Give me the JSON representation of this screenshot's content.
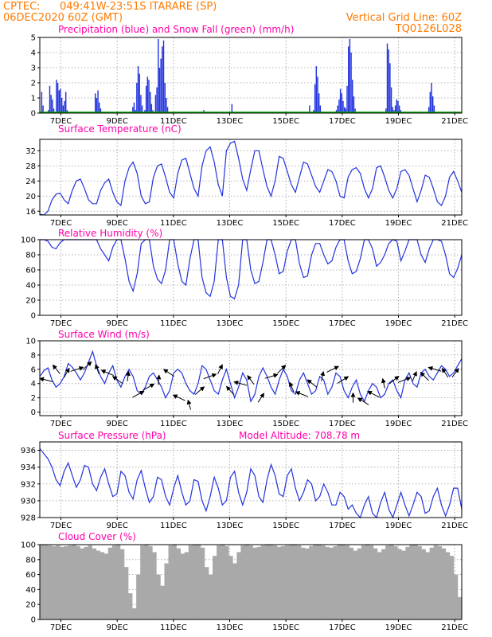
{
  "header": {
    "source": "CPTEC:",
    "location": "049:41W-23:51S  ITARARE (SP)",
    "run": "06DEC2020 60Z (GMT)",
    "grid_note": "Vertical Grid Line: 60Z",
    "code": "TQ0126L028"
  },
  "colors": {
    "header": "#ff7a00",
    "titles": "#ff00aa",
    "line": "#2233dd",
    "precip": "#2233dd",
    "snow": "#00aa00",
    "cloud": "#a9a9a9",
    "grid": "#9a9a9a"
  },
  "chart_data": [
    {
      "id": "precip",
      "type": "bar",
      "title": "Precipitation (blue) and Snow Fall (green) (mm/h)",
      "x_ticks": [
        "7DEC",
        "9DEC",
        "11DEC",
        "13DEC",
        "15DEC",
        "17DEC",
        "19DEC",
        "21DEC"
      ],
      "x_start": "06DEC2020 06Z",
      "x_step_hours": 3,
      "ylim": [
        0,
        5
      ],
      "yticks": [
        0,
        1,
        2,
        3,
        4,
        5
      ],
      "grid": true,
      "series": [
        {
          "values": [
            0,
            1.4,
            0.5,
            0,
            0,
            0,
            0.2,
            1.8,
            1.2,
            0.9,
            0.3,
            0,
            2.2,
            2.0,
            1.5,
            1.6,
            1.0,
            0.5,
            0.8,
            1.4,
            0.2,
            0,
            0,
            0,
            0,
            0,
            0,
            0,
            0,
            0,
            0,
            0,
            0,
            0,
            0,
            0,
            0,
            0,
            0,
            0,
            0,
            1.3,
            1.0,
            1.5,
            0.7,
            0.3,
            0,
            0,
            0,
            0,
            0,
            0,
            0,
            0,
            0,
            0,
            0,
            0,
            0,
            0,
            0,
            0,
            0,
            0,
            0,
            0,
            0,
            0,
            0,
            0.4,
            0.7,
            0.2,
            2.0,
            3.1,
            2.6,
            1.2,
            0.5,
            0,
            0.2,
            1.8,
            2.4,
            2.2,
            1.4,
            0.6,
            0.2,
            0,
            1.2,
            1.7,
            4.9,
            3.0,
            3.6,
            4.4,
            4.8,
            2.0,
            1.0,
            0.4,
            0,
            0,
            0,
            0,
            0,
            0,
            0,
            0,
            0,
            0,
            0,
            0,
            0,
            0,
            0,
            0,
            0,
            0,
            0,
            0,
            0,
            0,
            0,
            0,
            0,
            0,
            0.2,
            0,
            0,
            0,
            0,
            0,
            0,
            0,
            0,
            0,
            0,
            0,
            0,
            0,
            0,
            0,
            0,
            0,
            0,
            0,
            0,
            0.6,
            0,
            0,
            0,
            0,
            0,
            0,
            0,
            0,
            0,
            0,
            0,
            0,
            0,
            0,
            0,
            0,
            0,
            0,
            0,
            0,
            0,
            0,
            0,
            0,
            0,
            0,
            0,
            0,
            0,
            0,
            0,
            0,
            0,
            0,
            0,
            0,
            0,
            0,
            0,
            0,
            0,
            0,
            0,
            0,
            0,
            0,
            0,
            0,
            0,
            0,
            0,
            0,
            0,
            0,
            0,
            0,
            0,
            0.5,
            0,
            0,
            0.2,
            1.9,
            3.1,
            2.4,
            1.3,
            0.5,
            0,
            0,
            0,
            0,
            0,
            0,
            0,
            0,
            0,
            0,
            0,
            0.2,
            0.5,
            0.9,
            1.6,
            1.3,
            0.8,
            0.4,
            0.3,
            1.8,
            4.4,
            4.9,
            4.0,
            2.2,
            1.1,
            0.3,
            0,
            0,
            0,
            0,
            0,
            0,
            0,
            0,
            0,
            0,
            0,
            0,
            0,
            0,
            0,
            0,
            0,
            0,
            0,
            0,
            0,
            0,
            0.3,
            4.6,
            4.2,
            3.3,
            1.7,
            0.4,
            0.2,
            0.5,
            0.9,
            0.8,
            0.5,
            0.2,
            0,
            0,
            0,
            0,
            0,
            0,
            0,
            0,
            0,
            0,
            0,
            0,
            0,
            0,
            0,
            0,
            0,
            0,
            0,
            0,
            0.4,
            1.4,
            2.0,
            1.1,
            0.5,
            0,
            0,
            0,
            0,
            0,
            0,
            0,
            0,
            0,
            0,
            0,
            0,
            0,
            0,
            0,
            0,
            0,
            0,
            0,
            0
          ]
        }
      ]
    },
    {
      "id": "temp",
      "type": "line",
      "title": "Surface Temperature (nC)",
      "ylim": [
        15,
        35
      ],
      "yticks": [
        16,
        20,
        24,
        28,
        32
      ],
      "grid": true,
      "x_ticks": [
        "7DEC",
        "9DEC",
        "11DEC",
        "13DEC",
        "15DEC",
        "17DEC",
        "19DEC",
        "21DEC"
      ],
      "series": [
        {
          "values": [
            15.2,
            15.0,
            16.0,
            19.0,
            20.5,
            20.8,
            19.0,
            18.0,
            21.5,
            24.0,
            24.5,
            22.0,
            19.0,
            18.0,
            18.0,
            21.5,
            23.5,
            24.5,
            21.0,
            18.5,
            17.5,
            24.0,
            27.5,
            29.0,
            26.0,
            20.0,
            18.0,
            18.5,
            25.0,
            28.0,
            28.5,
            25.0,
            21.0,
            19.5,
            26.0,
            29.5,
            30.0,
            26.0,
            22.0,
            20.0,
            28.0,
            32.0,
            33.0,
            29.0,
            23.0,
            20.0,
            32.0,
            34.0,
            34.5,
            30.0,
            24.5,
            21.5,
            27.0,
            32.0,
            32.0,
            27.0,
            22.5,
            20.0,
            24.0,
            30.5,
            30.0,
            26.5,
            23.0,
            21.0,
            25.0,
            29.0,
            28.5,
            25.5,
            22.5,
            21.0,
            24.0,
            27.0,
            26.5,
            24.0,
            20.0,
            19.5,
            25.0,
            27.0,
            27.5,
            26.0,
            22.0,
            19.5,
            22.0,
            27.5,
            28.0,
            25.0,
            21.5,
            19.5,
            22.0,
            26.5,
            27.0,
            25.5,
            22.0,
            18.5,
            21.5,
            25.5,
            25.0,
            22.0,
            18.5,
            17.5,
            20.0,
            25.0,
            26.5,
            24.0,
            21.0
          ]
        }
      ]
    },
    {
      "id": "rh",
      "type": "line",
      "title": "Relative Humidity (%)",
      "ylim": [
        0,
        100
      ],
      "yticks": [
        0,
        20,
        40,
        60,
        80,
        100
      ],
      "grid": true,
      "x_ticks": [
        "7DEC",
        "9DEC",
        "11DEC",
        "13DEC",
        "15DEC",
        "17DEC",
        "19DEC",
        "21DEC"
      ],
      "series": [
        {
          "values": [
            100,
            100,
            98,
            90,
            88,
            96,
            100,
            100,
            100,
            100,
            100,
            100,
            100,
            100,
            100,
            88,
            80,
            72,
            90,
            100,
            100,
            75,
            45,
            32,
            55,
            95,
            100,
            100,
            65,
            48,
            42,
            60,
            100,
            100,
            68,
            45,
            40,
            75,
            100,
            100,
            50,
            30,
            25,
            45,
            100,
            100,
            50,
            25,
            22,
            40,
            100,
            100,
            60,
            42,
            45,
            70,
            100,
            100,
            80,
            55,
            58,
            85,
            100,
            100,
            68,
            50,
            52,
            80,
            95,
            95,
            80,
            68,
            72,
            90,
            100,
            100,
            72,
            55,
            58,
            75,
            100,
            100,
            88,
            65,
            70,
            80,
            95,
            100,
            98,
            72,
            85,
            100,
            100,
            100,
            80,
            70,
            88,
            100,
            100,
            98,
            80,
            55,
            50,
            62,
            80
          ]
        }
      ]
    },
    {
      "id": "wind",
      "type": "line",
      "title": "Surface Wind (m/s)",
      "ylim": [
        -0.5,
        10
      ],
      "yticks": [
        0,
        2,
        4,
        6,
        8,
        10
      ],
      "grid": true,
      "x_ticks": [
        "7DEC",
        "9DEC",
        "11DEC",
        "13DEC",
        "15DEC",
        "17DEC",
        "19DEC",
        "21DEC"
      ],
      "series": [
        {
          "values": [
            5.0,
            5.8,
            6.2,
            4.5,
            3.5,
            4.0,
            5.0,
            6.8,
            6.3,
            5.5,
            4.5,
            5.5,
            7.0,
            8.5,
            6.5,
            5.0,
            4.0,
            5.5,
            6.5,
            4.5,
            3.5,
            5.0,
            6.0,
            5.0,
            3.0,
            2.5,
            3.5,
            5.0,
            5.5,
            4.5,
            3.5,
            2.0,
            3.0,
            5.5,
            6.0,
            5.5,
            4.0,
            3.0,
            2.5,
            4.0,
            6.5,
            6.0,
            4.5,
            3.0,
            2.5,
            4.5,
            6.0,
            4.0,
            2.0,
            3.5,
            5.5,
            4.5,
            1.5,
            2.5,
            5.0,
            6.2,
            5.0,
            3.5,
            2.5,
            4.5,
            6.0,
            5.0,
            3.0,
            2.5,
            4.5,
            5.5,
            4.0,
            2.5,
            3.0,
            5.0,
            4.5,
            2.5,
            3.5,
            5.5,
            5.0,
            3.0,
            2.0,
            3.5,
            4.5,
            2.5,
            1.5,
            3.0,
            4.0,
            3.5,
            2.0,
            2.5,
            4.0,
            4.5,
            3.0,
            2.0,
            4.5,
            5.5,
            4.0,
            3.5,
            5.5,
            6.0,
            5.0,
            4.5,
            5.5,
            6.5,
            6.0,
            5.0,
            5.5,
            6.5,
            7.5
          ]
        },
        {
          "name": "vectors",
          "values": [
            4.5,
            6.0,
            5.5,
            6.0,
            6.5,
            6.0,
            5.5,
            4.5,
            5.0,
            2.5,
            3.5,
            4.5,
            5.5,
            2.0,
            1.0,
            3.0,
            5.0,
            6.0,
            3.0,
            4.0,
            4.5,
            2.0,
            5.0,
            6.0,
            3.5,
            2.5,
            4.0,
            5.0,
            6.0,
            4.5,
            2.0,
            1.5,
            2.5,
            4.0,
            4.5,
            4.5,
            5.0,
            5.0,
            6.0,
            5.5,
            5.5
          ]
        }
      ]
    },
    {
      "id": "pressure",
      "type": "line",
      "title": "Surface Pressure (hPa)",
      "subtitle": "Model Altitude:  708.78 m",
      "ylim": [
        928,
        937
      ],
      "yticks": [
        928,
        930,
        932,
        934,
        936
      ],
      "grid": true,
      "x_ticks": [
        "7DEC",
        "9DEC",
        "11DEC",
        "13DEC",
        "15DEC",
        "17DEC",
        "19DEC",
        "21DEC"
      ],
      "series": [
        {
          "values": [
            936.2,
            935.6,
            935.0,
            934.0,
            932.5,
            931.8,
            933.5,
            934.5,
            933.0,
            931.6,
            932.5,
            934.2,
            934.0,
            932.0,
            931.2,
            932.8,
            933.8,
            932.0,
            930.5,
            930.8,
            933.5,
            933.0,
            931.0,
            930.2,
            932.5,
            933.6,
            931.5,
            929.8,
            930.5,
            932.8,
            932.5,
            930.5,
            929.5,
            931.5,
            933.0,
            931.0,
            929.5,
            930.0,
            932.5,
            932.3,
            930.0,
            928.8,
            930.5,
            932.8,
            931.5,
            929.5,
            930.0,
            932.8,
            933.5,
            931.0,
            929.5,
            931.0,
            933.8,
            933.0,
            930.5,
            929.8,
            932.5,
            934.3,
            933.0,
            930.8,
            930.5,
            933.0,
            933.8,
            931.5,
            930.0,
            931.0,
            932.5,
            932.0,
            930.0,
            930.5,
            932.0,
            931.0,
            929.5,
            929.5,
            931.0,
            930.5,
            929.0,
            929.5,
            928.5,
            927.8,
            929.5,
            930.5,
            928.5,
            928.0,
            929.8,
            931.0,
            929.0,
            928.0,
            929.5,
            931.0,
            929.5,
            928.2,
            929.5,
            931.0,
            930.5,
            928.5,
            928.8,
            930.5,
            931.5,
            929.5,
            928.2,
            929.5,
            931.5,
            931.5,
            929.0
          ]
        }
      ]
    },
    {
      "id": "cloud",
      "type": "area",
      "title": "Cloud Cover (%)",
      "ylim": [
        0,
        100
      ],
      "yticks": [
        0,
        20,
        40,
        60,
        80,
        100
      ],
      "grid": true,
      "x_ticks": [
        "7DEC",
        "9DEC",
        "11DEC",
        "13DEC",
        "15DEC",
        "17DEC",
        "19DEC",
        "21DEC"
      ],
      "series": [
        {
          "values": [
            100,
            100,
            99,
            98,
            99,
            97,
            98,
            99,
            100,
            98,
            95,
            97,
            99,
            95,
            92,
            90,
            88,
            96,
            99,
            100,
            94,
            70,
            35,
            15,
            60,
            99,
            100,
            98,
            90,
            60,
            45,
            75,
            99,
            100,
            95,
            88,
            90,
            99,
            100,
            100,
            96,
            70,
            60,
            85,
            99,
            100,
            98,
            85,
            75,
            90,
            99,
            100,
            99,
            96,
            97,
            99,
            100,
            100,
            99,
            97,
            98,
            99,
            100,
            100,
            99,
            96,
            95,
            98,
            100,
            100,
            99,
            97,
            96,
            98,
            100,
            100,
            99,
            96,
            92,
            95,
            99,
            100,
            99,
            95,
            90,
            94,
            99,
            100,
            98,
            94,
            92,
            97,
            100,
            100,
            98,
            94,
            90,
            96,
            99,
            98,
            95,
            90,
            85,
            60,
            30
          ]
        }
      ]
    }
  ]
}
